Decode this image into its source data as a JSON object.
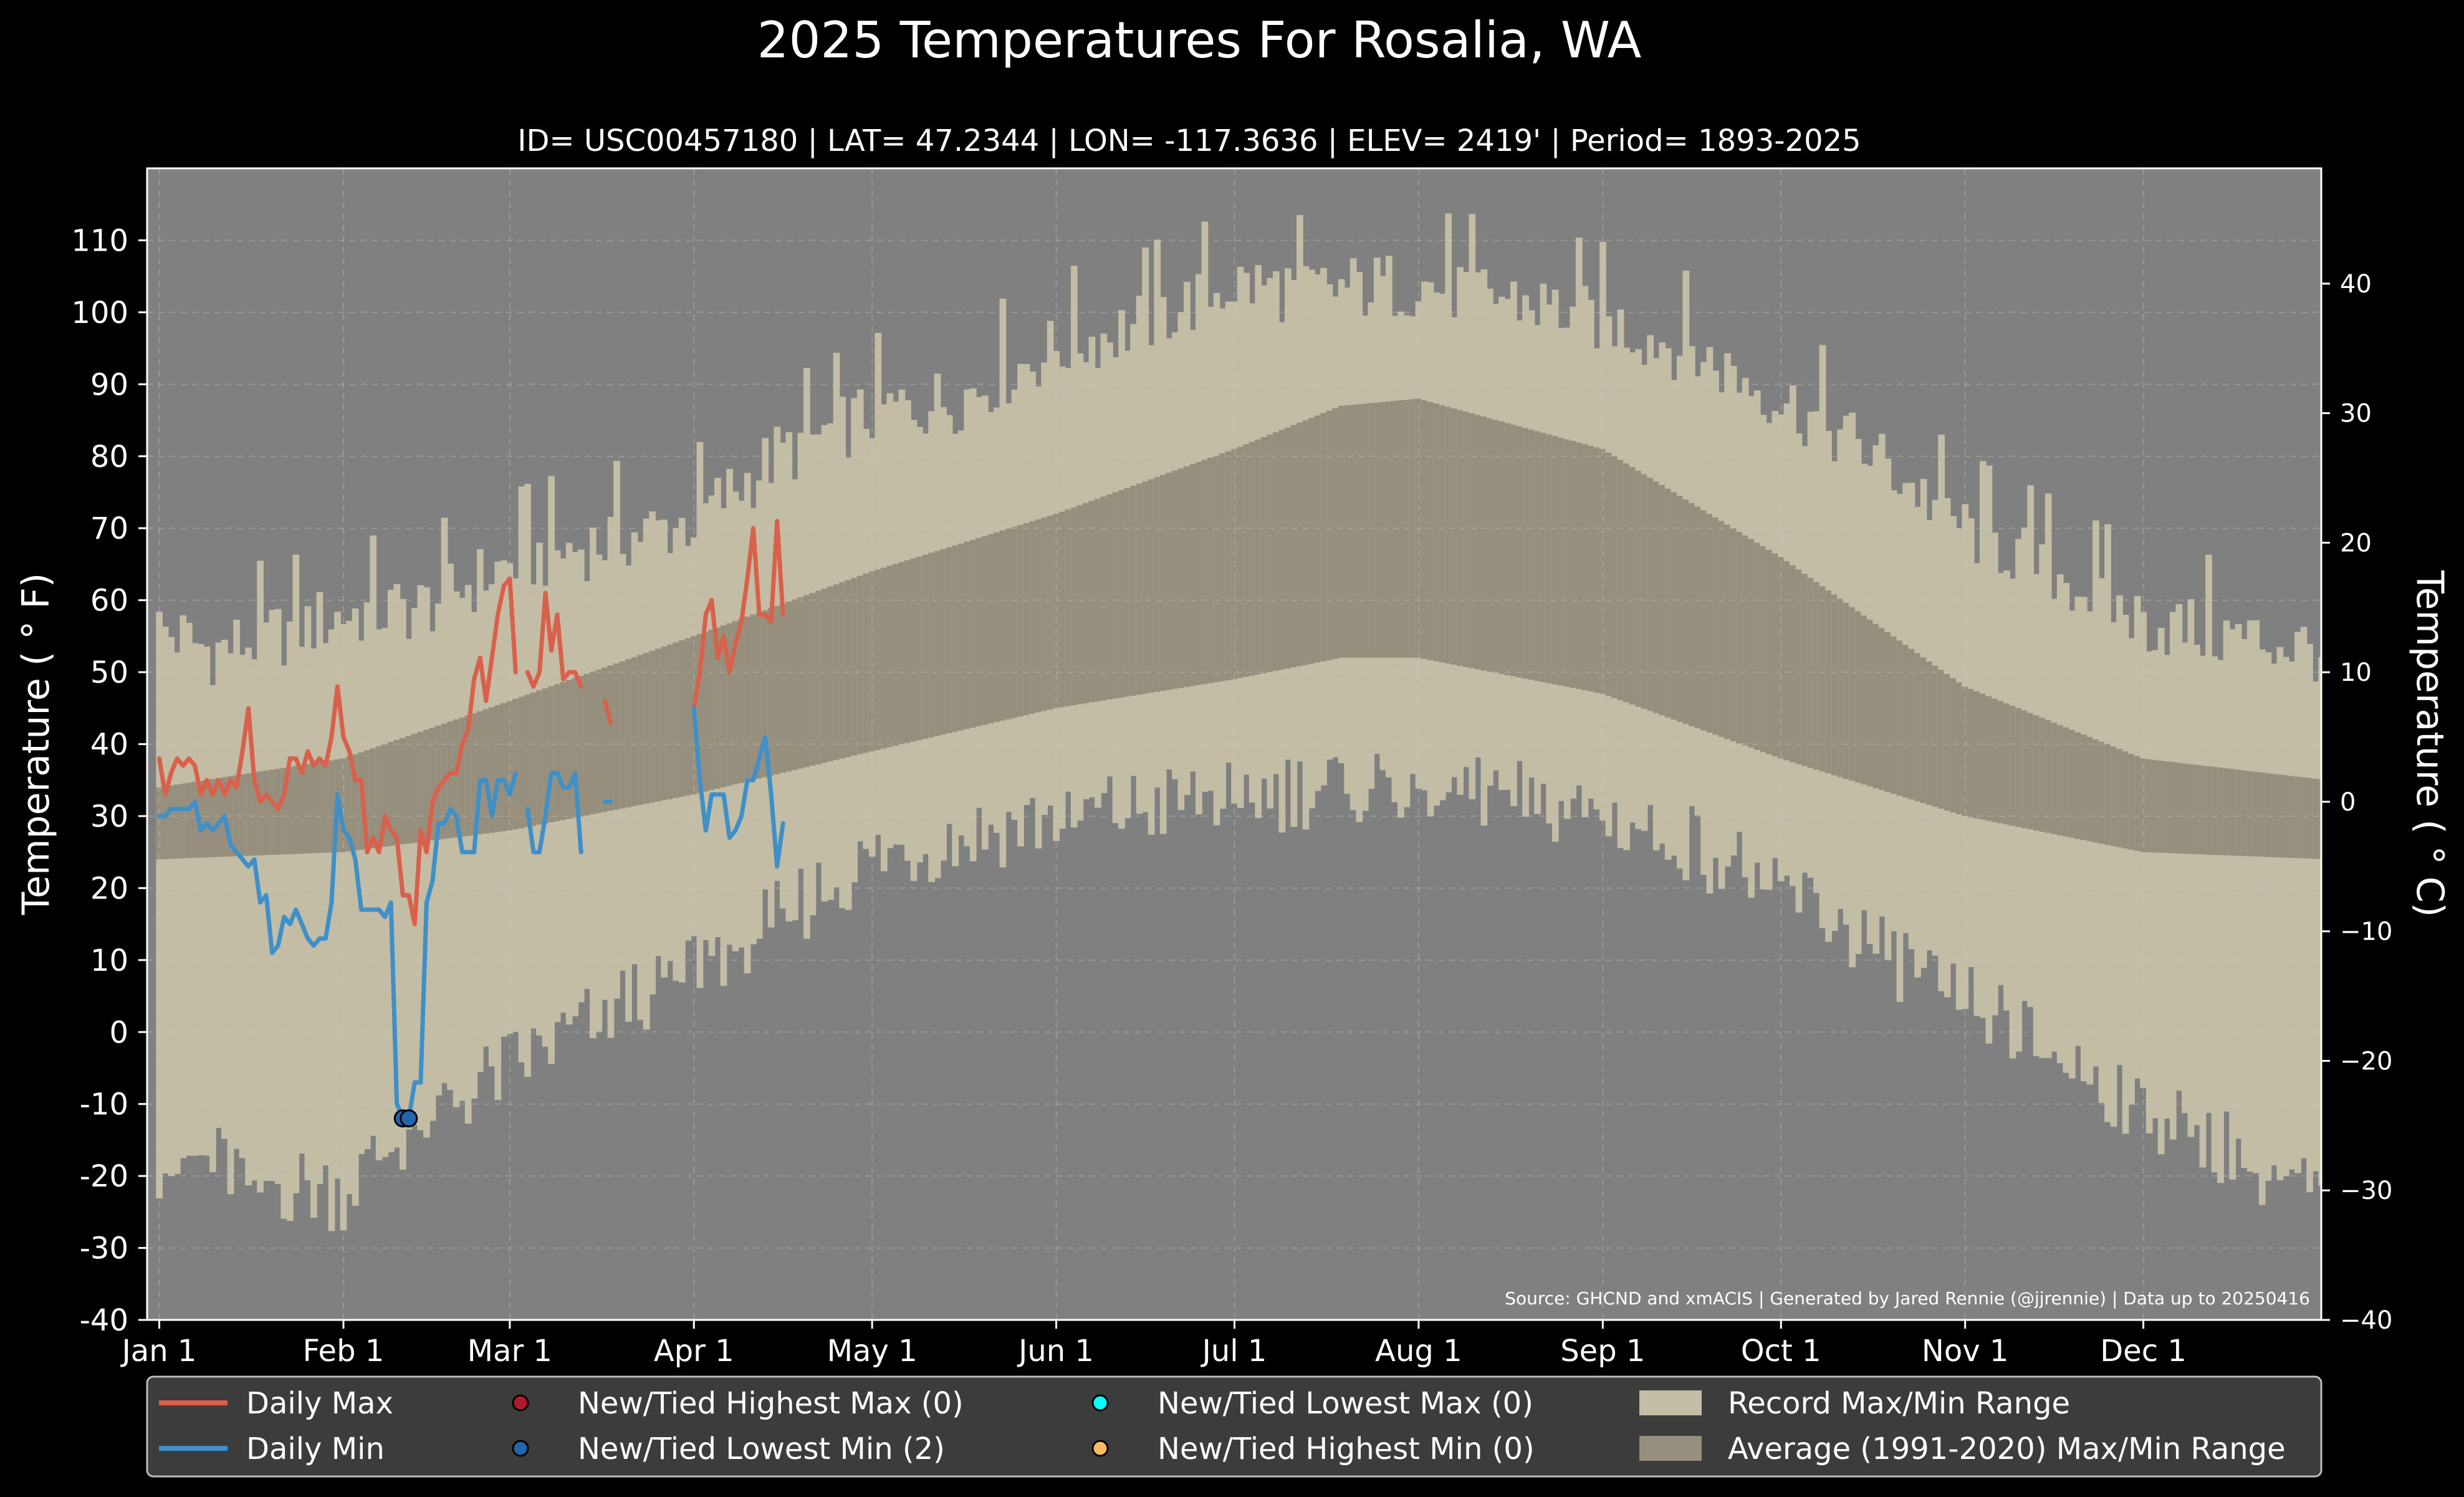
{
  "chart_data": {
    "type": "line",
    "title": "2025 Temperatures For Rosalia, WA",
    "subtitle": "ID= USC00457180 | LAT= 47.2344 | LON= -117.3636 | ELEV= 2419' | Period= 1893-2025",
    "ylabel": "Temperature ($^\\circ$F)",
    "ylabel_display": "Temperature ( ° F)",
    "y2label_display": "Temperature ( ° C)",
    "source": "Source: GHCND and xmACIS | Generated by Jared Rennie (@jjrennie) | Data up to 20250416",
    "ylim": [
      -40,
      120
    ],
    "yticks": [
      -40,
      -30,
      -20,
      -10,
      0,
      10,
      20,
      30,
      40,
      50,
      60,
      70,
      80,
      90,
      100,
      110
    ],
    "y2lim": [
      -40,
      48.9
    ],
    "y2ticks": [
      -40,
      -30,
      -20,
      -10,
      0,
      10,
      20,
      30,
      40
    ],
    "y2tick_labels": [
      "−40",
      "−30",
      "−20",
      "−10",
      "0",
      "10",
      "20",
      "30",
      "40"
    ],
    "xlim": [
      0,
      366
    ],
    "month_ticks": [
      {
        "label": "Jan 1",
        "day": 1
      },
      {
        "label": "Feb 1",
        "day": 32
      },
      {
        "label": "Mar 1",
        "day": 60
      },
      {
        "label": "Apr 1",
        "day": 91
      },
      {
        "label": "May 1",
        "day": 121
      },
      {
        "label": "Jun 1",
        "day": 152
      },
      {
        "label": "Jul 1",
        "day": 182
      },
      {
        "label": "Aug 1",
        "day": 213
      },
      {
        "label": "Sep 1",
        "day": 244
      },
      {
        "label": "Oct 1",
        "day": 274
      },
      {
        "label": "Nov 1",
        "day": 305
      },
      {
        "label": "Dec 1",
        "day": 335
      }
    ],
    "grid": true,
    "legend_position": "bottom",
    "legend": [
      {
        "label": "Daily Max",
        "kind": "line",
        "color": "#D9604B"
      },
      {
        "label": "Daily Min",
        "kind": "line",
        "color": "#3F8FC8"
      },
      {
        "label": "New/Tied Highest Max (0)",
        "kind": "dot",
        "color": "#B2182B"
      },
      {
        "label": "New/Tied Lowest Min (2)",
        "kind": "dot",
        "color": "#2166AC"
      },
      {
        "label": "New/Tied Lowest Max (0)",
        "kind": "dot",
        "color": "#00FFFF"
      },
      {
        "label": "New/Tied Highest Min (0)",
        "kind": "dot",
        "color": "#FDB863"
      },
      {
        "label": "Record Max/Min Range",
        "kind": "patch",
        "color": "#C4BDA6"
      },
      {
        "label": "Average (1991-2020) Max/Min Range",
        "kind": "patch",
        "color": "#978F7D"
      }
    ],
    "colors": {
      "background": "#000000",
      "plot_background": "#808080",
      "record_range": "#C4BDA6",
      "normal_range": "#978F7D",
      "daily_max": "#D9604B",
      "daily_min": "#3F8FC8",
      "record_low_marker": "#2166AC",
      "legend_background": "#3C3C3C",
      "grid": "#C8C8C8"
    },
    "record_max_anchors": {
      "day": [
        1,
        10,
        20,
        32,
        45,
        60,
        75,
        91,
        105,
        121,
        135,
        152,
        165,
        182,
        195,
        213,
        228,
        244,
        258,
        274,
        290,
        305,
        320,
        335,
        350,
        366
      ],
      "temp": [
        56,
        53,
        55,
        58,
        59,
        65,
        68,
        71,
        80,
        86,
        88,
        95,
        98,
        104,
        103,
        104,
        102,
        99,
        95,
        88,
        80,
        70,
        64,
        57,
        55,
        53
      ]
    },
    "record_min_anchors": {
      "day": [
        1,
        10,
        20,
        32,
        45,
        60,
        75,
        91,
        105,
        121,
        135,
        152,
        165,
        182,
        195,
        213,
        228,
        244,
        258,
        274,
        290,
        305,
        320,
        335,
        350,
        366
      ],
      "temp": [
        -18,
        -18,
        -21,
        -22,
        -12,
        -5,
        2,
        10,
        16,
        24,
        27,
        30,
        31,
        33,
        34,
        35,
        33,
        30,
        27,
        20,
        12,
        5,
        -3,
        -10,
        -16,
        -24
      ]
    },
    "normal_max_anchors": {
      "day": [
        1,
        32,
        60,
        91,
        121,
        152,
        182,
        200,
        213,
        244,
        274,
        305,
        335,
        366
      ],
      "temp": [
        34,
        38,
        46,
        55,
        64,
        72,
        81,
        87,
        88,
        81,
        66,
        48,
        38,
        35
      ]
    },
    "normal_min_anchors": {
      "day": [
        1,
        32,
        60,
        91,
        121,
        152,
        182,
        200,
        213,
        244,
        274,
        305,
        335,
        366
      ],
      "temp": [
        24,
        25,
        28,
        33,
        39,
        45,
        49,
        52,
        52,
        47,
        38,
        30,
        25,
        24
      ]
    },
    "series": [
      {
        "name": "Daily Max",
        "day": [
          1,
          2,
          3,
          4,
          5,
          6,
          7,
          8,
          9,
          10,
          11,
          12,
          13,
          14,
          15,
          16,
          17,
          18,
          19,
          20,
          21,
          22,
          23,
          24,
          25,
          26,
          27,
          28,
          29,
          30,
          31,
          32,
          33,
          34,
          35,
          36,
          37,
          38,
          39,
          40,
          41,
          42,
          43,
          44,
          45,
          46,
          47,
          48,
          49,
          50,
          51,
          52,
          53,
          54,
          55,
          56,
          57,
          58,
          59,
          60,
          61,
          62,
          63,
          64,
          65,
          66,
          67,
          68,
          69,
          70,
          71,
          72,
          73,
          74,
          75,
          76,
          77,
          78,
          79,
          80,
          81,
          82,
          83,
          84,
          85,
          86,
          87,
          88,
          89,
          90,
          91,
          92,
          93,
          94,
          95,
          96,
          97,
          98,
          99,
          100,
          101,
          102,
          103,
          104,
          105,
          106
        ],
        "values": [
          38,
          33,
          36,
          38,
          37,
          38,
          37,
          33,
          35,
          33,
          35,
          33,
          35,
          34,
          39,
          45,
          35,
          32,
          33,
          32,
          31,
          33,
          38,
          38,
          36,
          39,
          37,
          38,
          37,
          41,
          48,
          41,
          39,
          35,
          35,
          25,
          27,
          25,
          30,
          28,
          27,
          19,
          19,
          15,
          28,
          25,
          32,
          34,
          35,
          36,
          36,
          40,
          42,
          49,
          52,
          46,
          52,
          58,
          62,
          63,
          50,
          null,
          50,
          48,
          50,
          61,
          53,
          58,
          49,
          50,
          50,
          48,
          null,
          null,
          null,
          46,
          43,
          null,
          null,
          null,
          null,
          null,
          null,
          null,
          null,
          null,
          null,
          null,
          null,
          null,
          45,
          50,
          58,
          60,
          52,
          55,
          50,
          54,
          57,
          63,
          70,
          58,
          58,
          57,
          71,
          58
        ]
      },
      {
        "name": "Daily Min",
        "day": [
          1,
          2,
          3,
          4,
          5,
          6,
          7,
          8,
          9,
          10,
          11,
          12,
          13,
          14,
          15,
          16,
          17,
          18,
          19,
          20,
          21,
          22,
          23,
          24,
          25,
          26,
          27,
          28,
          29,
          30,
          31,
          32,
          33,
          34,
          35,
          36,
          37,
          38,
          39,
          40,
          41,
          42,
          43,
          44,
          45,
          46,
          47,
          48,
          49,
          50,
          51,
          52,
          53,
          54,
          55,
          56,
          57,
          58,
          59,
          60,
          61,
          62,
          63,
          64,
          65,
          66,
          67,
          68,
          69,
          70,
          71,
          72,
          73,
          74,
          75,
          76,
          77,
          78,
          79,
          80,
          81,
          82,
          83,
          84,
          85,
          86,
          87,
          88,
          89,
          90,
          91,
          92,
          93,
          94,
          95,
          96,
          97,
          98,
          99,
          100,
          101,
          102,
          103,
          104,
          105,
          106
        ],
        "values": [
          30,
          30,
          31,
          31,
          31,
          31,
          32,
          28,
          29,
          28,
          29,
          30,
          26,
          25,
          24,
          23,
          24,
          18,
          19,
          11,
          12,
          16,
          15,
          17,
          15,
          13,
          12,
          13,
          13,
          18,
          33,
          28,
          27,
          24,
          17,
          17,
          17,
          17,
          16,
          18,
          -10,
          -12,
          -12,
          -7,
          -7,
          18,
          21,
          29,
          29,
          31,
          30,
          25,
          25,
          25,
          35,
          35,
          30,
          35,
          35,
          33,
          36,
          null,
          31,
          25,
          25,
          30,
          36,
          36,
          34,
          34,
          36,
          25,
          null,
          null,
          null,
          32,
          32,
          null,
          null,
          null,
          null,
          null,
          null,
          null,
          null,
          null,
          null,
          null,
          null,
          null,
          45,
          35,
          28,
          33,
          33,
          33,
          27,
          28,
          30,
          35,
          35,
          38,
          41,
          33,
          23,
          29
        ]
      }
    ],
    "record_low_markers": [
      {
        "day": 42,
        "temp": -12
      },
      {
        "day": 43,
        "temp": -12
      }
    ]
  }
}
